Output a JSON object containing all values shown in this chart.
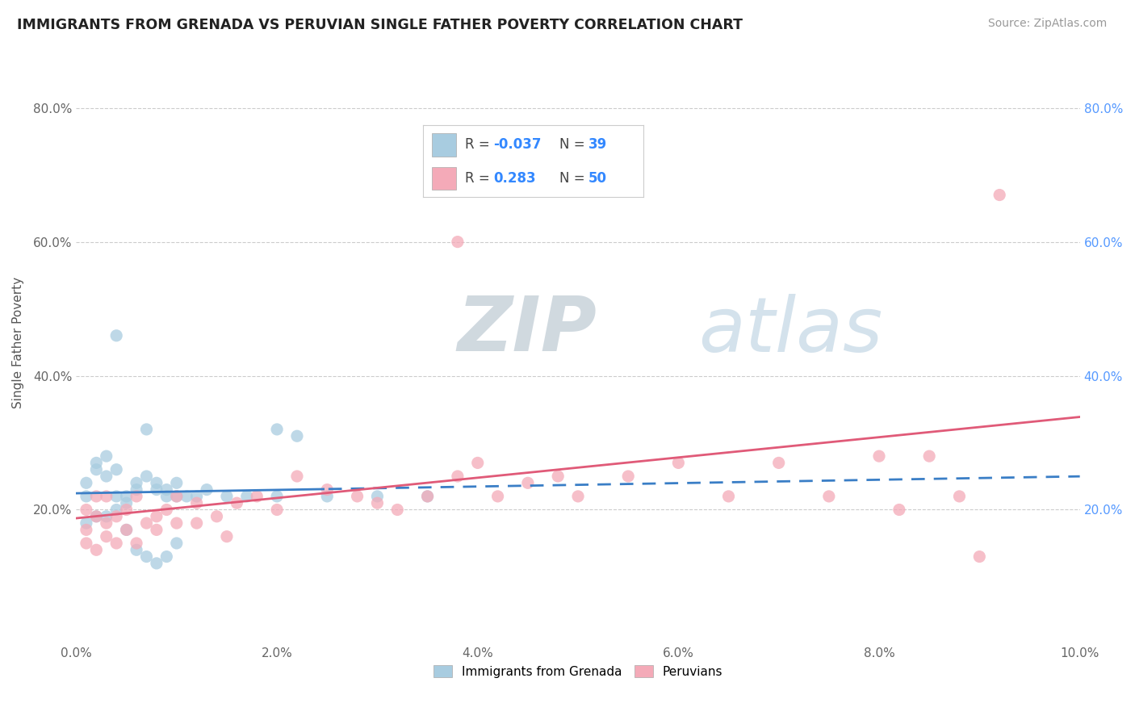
{
  "title": "IMMIGRANTS FROM GRENADA VS PERUVIAN SINGLE FATHER POVERTY CORRELATION CHART",
  "source": "Source: ZipAtlas.com",
  "ylabel": "Single Father Poverty",
  "xlim": [
    0.0,
    0.1
  ],
  "ylim": [
    0.0,
    0.9
  ],
  "legend_label1": "Immigrants from Grenada",
  "legend_label2": "Peruvians",
  "R1": -0.037,
  "N1": 39,
  "R2": 0.283,
  "N2": 50,
  "color1": "#a8cce0",
  "color2": "#f4aab8",
  "line_color1": "#3a7ec6",
  "line_color2": "#e05a78",
  "watermark_color": "#d0dce8",
  "background_color": "#ffffff",
  "grid_color": "#cccccc",
  "grenada_x": [
    0.001,
    0.001,
    0.002,
    0.002,
    0.003,
    0.003,
    0.004,
    0.004,
    0.005,
    0.005,
    0.006,
    0.006,
    0.007,
    0.007,
    0.008,
    0.008,
    0.009,
    0.009,
    0.01,
    0.01,
    0.011,
    0.012,
    0.013,
    0.015,
    0.017,
    0.02,
    0.025,
    0.03,
    0.035,
    0.001,
    0.002,
    0.003,
    0.004,
    0.005,
    0.006,
    0.007,
    0.008,
    0.009,
    0.01
  ],
  "grenada_y": [
    0.22,
    0.24,
    0.27,
    0.26,
    0.25,
    0.28,
    0.26,
    0.22,
    0.22,
    0.21,
    0.24,
    0.23,
    0.32,
    0.25,
    0.24,
    0.23,
    0.22,
    0.23,
    0.22,
    0.24,
    0.22,
    0.22,
    0.23,
    0.22,
    0.22,
    0.22,
    0.22,
    0.22,
    0.22,
    0.18,
    0.19,
    0.19,
    0.2,
    0.17,
    0.14,
    0.13,
    0.12,
    0.13,
    0.15
  ],
  "peru_x": [
    0.001,
    0.001,
    0.002,
    0.002,
    0.003,
    0.003,
    0.004,
    0.005,
    0.006,
    0.007,
    0.008,
    0.009,
    0.01,
    0.012,
    0.014,
    0.016,
    0.018,
    0.02,
    0.022,
    0.025,
    0.028,
    0.03,
    0.032,
    0.035,
    0.038,
    0.04,
    0.042,
    0.045,
    0.048,
    0.05,
    0.055,
    0.06,
    0.065,
    0.07,
    0.075,
    0.08,
    0.082,
    0.085,
    0.088,
    0.09,
    0.001,
    0.002,
    0.003,
    0.004,
    0.005,
    0.006,
    0.008,
    0.01,
    0.012,
    0.015
  ],
  "peru_y": [
    0.2,
    0.17,
    0.22,
    0.19,
    0.22,
    0.18,
    0.19,
    0.2,
    0.22,
    0.18,
    0.19,
    0.2,
    0.22,
    0.21,
    0.19,
    0.21,
    0.22,
    0.2,
    0.25,
    0.23,
    0.22,
    0.21,
    0.2,
    0.22,
    0.25,
    0.27,
    0.22,
    0.24,
    0.25,
    0.22,
    0.25,
    0.27,
    0.22,
    0.27,
    0.22,
    0.28,
    0.2,
    0.28,
    0.22,
    0.13,
    0.15,
    0.14,
    0.16,
    0.15,
    0.17,
    0.15,
    0.17,
    0.18,
    0.18,
    0.16
  ]
}
